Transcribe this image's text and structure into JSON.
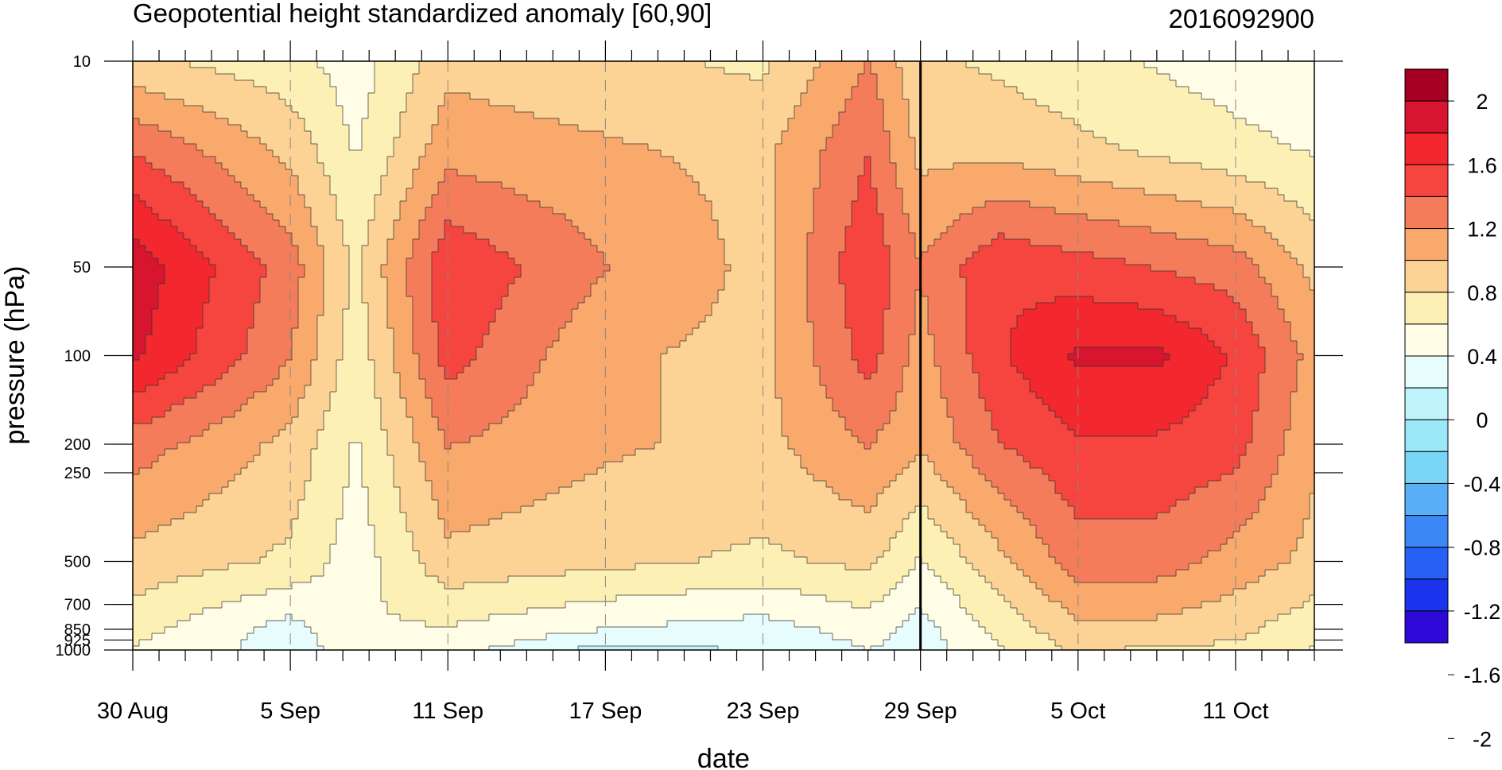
{
  "chart_data": {
    "type": "heatmap",
    "title": "Geopotential height standardized anomaly [60,90]",
    "date_label": "2016092900",
    "xlabel": "date",
    "ylabel": "pressure (hPa)",
    "x_ticks": [
      {
        "label": "30 Aug",
        "day": 0
      },
      {
        "label": "5 Sep",
        "day": 6
      },
      {
        "label": "11 Sep",
        "day": 12
      },
      {
        "label": "17 Sep",
        "day": 18
      },
      {
        "label": "23 Sep",
        "day": 24
      },
      {
        "label": "29 Sep",
        "day": 30
      },
      {
        "label": "5 Oct",
        "day": 36
      },
      {
        "label": "11 Oct",
        "day": 42
      }
    ],
    "x_range_days": [
      0,
      45
    ],
    "current_date_day": 30,
    "y_scale": "log",
    "y_range": [
      1000,
      10
    ],
    "y_ticks": [
      "10",
      "50",
      "100",
      "200",
      "250",
      "500",
      "700",
      "850",
      "925",
      "1000"
    ],
    "y_tick_values": [
      10,
      50,
      100,
      200,
      250,
      500,
      700,
      850,
      925,
      1000
    ],
    "colorbar": {
      "labels": [
        "2",
        "1.6",
        "1.2",
        "0.8",
        "0.4",
        "0",
        "-0.4",
        "-0.8",
        "-1.2",
        "-1.6",
        "-2"
      ],
      "colors": [
        "#a50021",
        "#d8152f",
        "#f2282e",
        "#f6453f",
        "#f57c5a",
        "#f9a96c",
        "#fcd395",
        "#fdf0b5",
        "#fffde6",
        "#e6fcfd",
        "#bff4fb",
        "#9ae8f8",
        "#7ad6f6",
        "#58aff7",
        "#3b87f5",
        "#2660f5",
        "#1a34ee",
        "#2e08d6"
      ]
    },
    "data_grid": {
      "dates_day": [
        0,
        6,
        8.5,
        12,
        18,
        24,
        28,
        30,
        33,
        36,
        39,
        42,
        45
      ],
      "levels_hPa": [
        10,
        20,
        50,
        100,
        200,
        500,
        850,
        1000
      ],
      "values": [
        [
          0.5,
          0.3,
          0.1,
          0.6,
          0.5,
          0.4,
          0.9,
          0.5,
          0.4,
          0.3,
          0.2,
          0.1,
          0.0
        ],
        [
          1.1,
          0.6,
          0.2,
          0.8,
          0.7,
          0.6,
          1.1,
          0.6,
          0.6,
          0.5,
          0.4,
          0.3,
          0.2
        ],
        [
          1.7,
          1.0,
          0.4,
          1.3,
          0.9,
          0.6,
          1.3,
          0.9,
          1.3,
          1.2,
          1.1,
          1.0,
          0.6
        ],
        [
          1.6,
          0.9,
          0.3,
          1.2,
          0.7,
          0.6,
          1.2,
          0.8,
          1.3,
          1.6,
          1.6,
          1.3,
          0.8
        ],
        [
          1.0,
          0.6,
          0.2,
          0.9,
          0.7,
          0.6,
          0.9,
          0.7,
          1.1,
          1.3,
          1.3,
          1.2,
          0.7
        ],
        [
          0.6,
          0.4,
          0.1,
          0.6,
          0.5,
          0.4,
          0.5,
          0.2,
          0.6,
          1.0,
          1.0,
          0.8,
          0.6
        ],
        [
          0.3,
          -0.1,
          0.2,
          0.2,
          0.0,
          -0.1,
          0.1,
          -0.1,
          0.3,
          0.6,
          0.6,
          0.5,
          0.3
        ],
        [
          0.2,
          -0.1,
          0.1,
          0.1,
          -0.3,
          -0.2,
          0.0,
          -0.1,
          0.2,
          0.5,
          0.4,
          0.4,
          0.2
        ]
      ]
    }
  }
}
